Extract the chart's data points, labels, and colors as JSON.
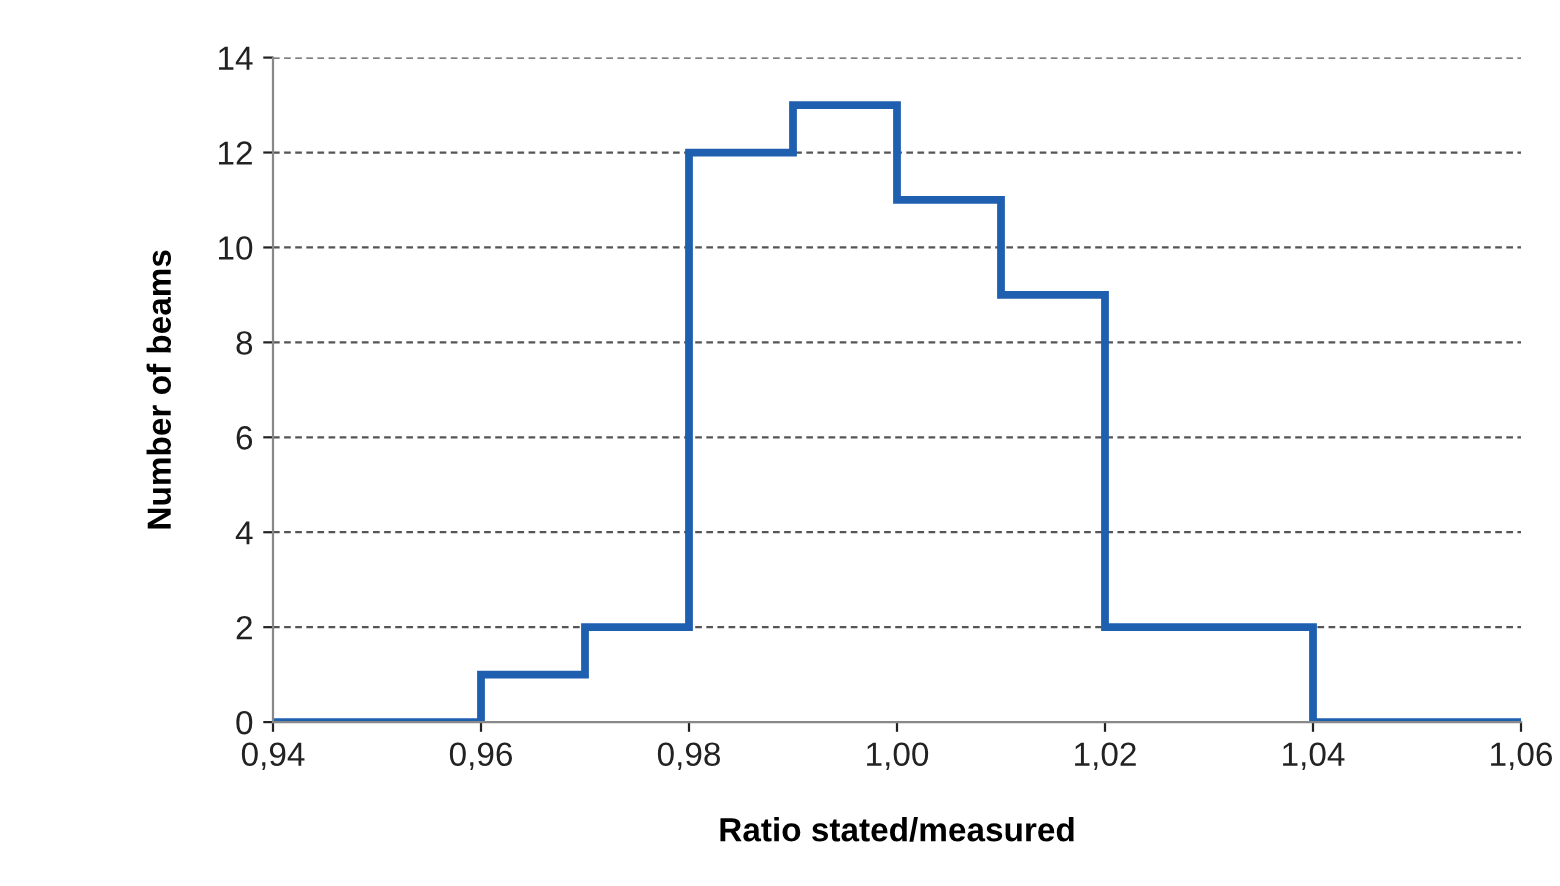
{
  "chart_data": {
    "type": "histogram",
    "xlabel": "Ratio stated/measured",
    "ylabel": "Number of beams",
    "bins": [
      0.94,
      0.96,
      0.97,
      0.98,
      0.99,
      1.0,
      1.01,
      1.02,
      1.04,
      1.06
    ],
    "values": [
      0,
      1,
      2,
      12,
      13,
      11,
      9,
      2,
      0
    ],
    "color": "#1f5fb0",
    "xlim": [
      0.94,
      1.06
    ],
    "xticks": [
      {
        "value": 0.94,
        "label": "0,94"
      },
      {
        "value": 0.96,
        "label": "0,96"
      },
      {
        "value": 0.98,
        "label": "0,98"
      },
      {
        "value": 1.0,
        "label": "1,00"
      },
      {
        "value": 1.02,
        "label": "1,02"
      },
      {
        "value": 1.04,
        "label": "1,04"
      },
      {
        "value": 1.06,
        "label": "1,06"
      }
    ],
    "ylim": [
      0,
      14
    ],
    "yticks": [
      0,
      2,
      4,
      6,
      8,
      10,
      12,
      14
    ],
    "grid": "y",
    "legend": false
  }
}
